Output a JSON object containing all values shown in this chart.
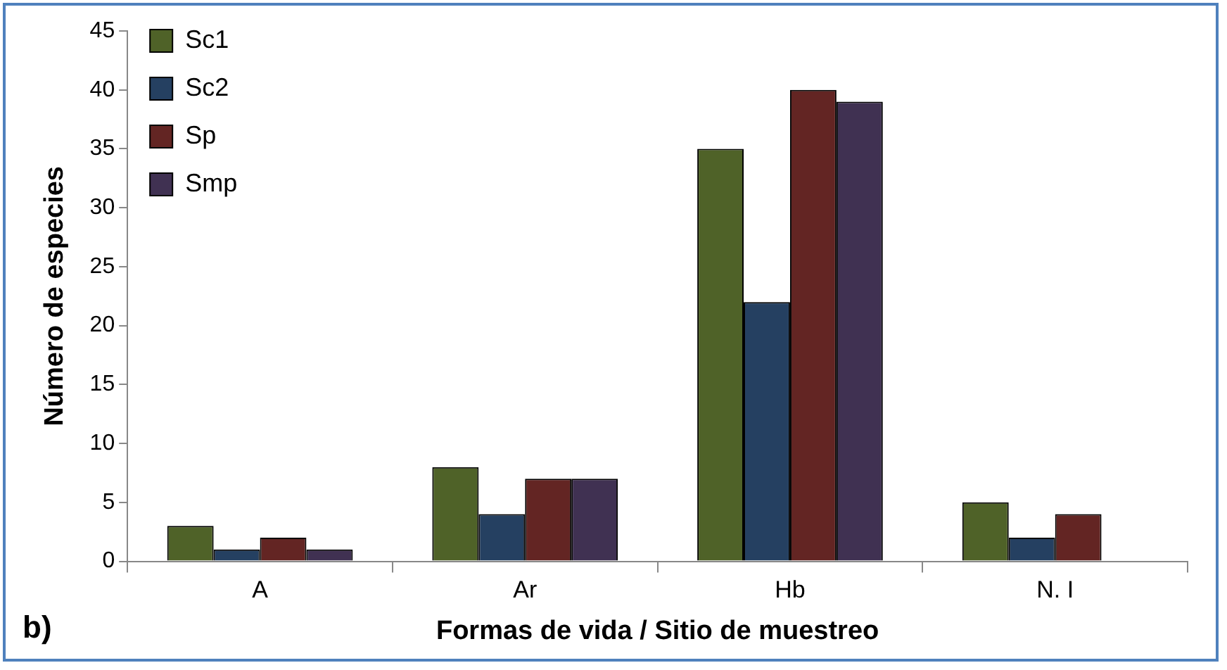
{
  "chart_data": {
    "type": "bar",
    "xlabel": "Formas de vida / Sitio de muestreo",
    "ylabel": "Número de especies",
    "categories": [
      "A",
      "Ar",
      "Hb",
      "N. I"
    ],
    "series": [
      {
        "name": "Sc1",
        "color": "#4f6228",
        "values": [
          3,
          8,
          35,
          5
        ]
      },
      {
        "name": "Sc2",
        "color": "#254061",
        "values": [
          1,
          4,
          22,
          2
        ]
      },
      {
        "name": "Sp",
        "color": "#632523",
        "values": [
          2,
          7,
          40,
          4
        ]
      },
      {
        "name": "Smp",
        "color": "#403152",
        "values": [
          1,
          7,
          39,
          0
        ]
      }
    ],
    "ylim": [
      0,
      45
    ],
    "yticks": [
      0,
      5,
      10,
      15,
      20,
      25,
      30,
      35,
      40,
      45
    ],
    "grid": false,
    "legend": "top left",
    "annotations": [
      "b)"
    ]
  }
}
